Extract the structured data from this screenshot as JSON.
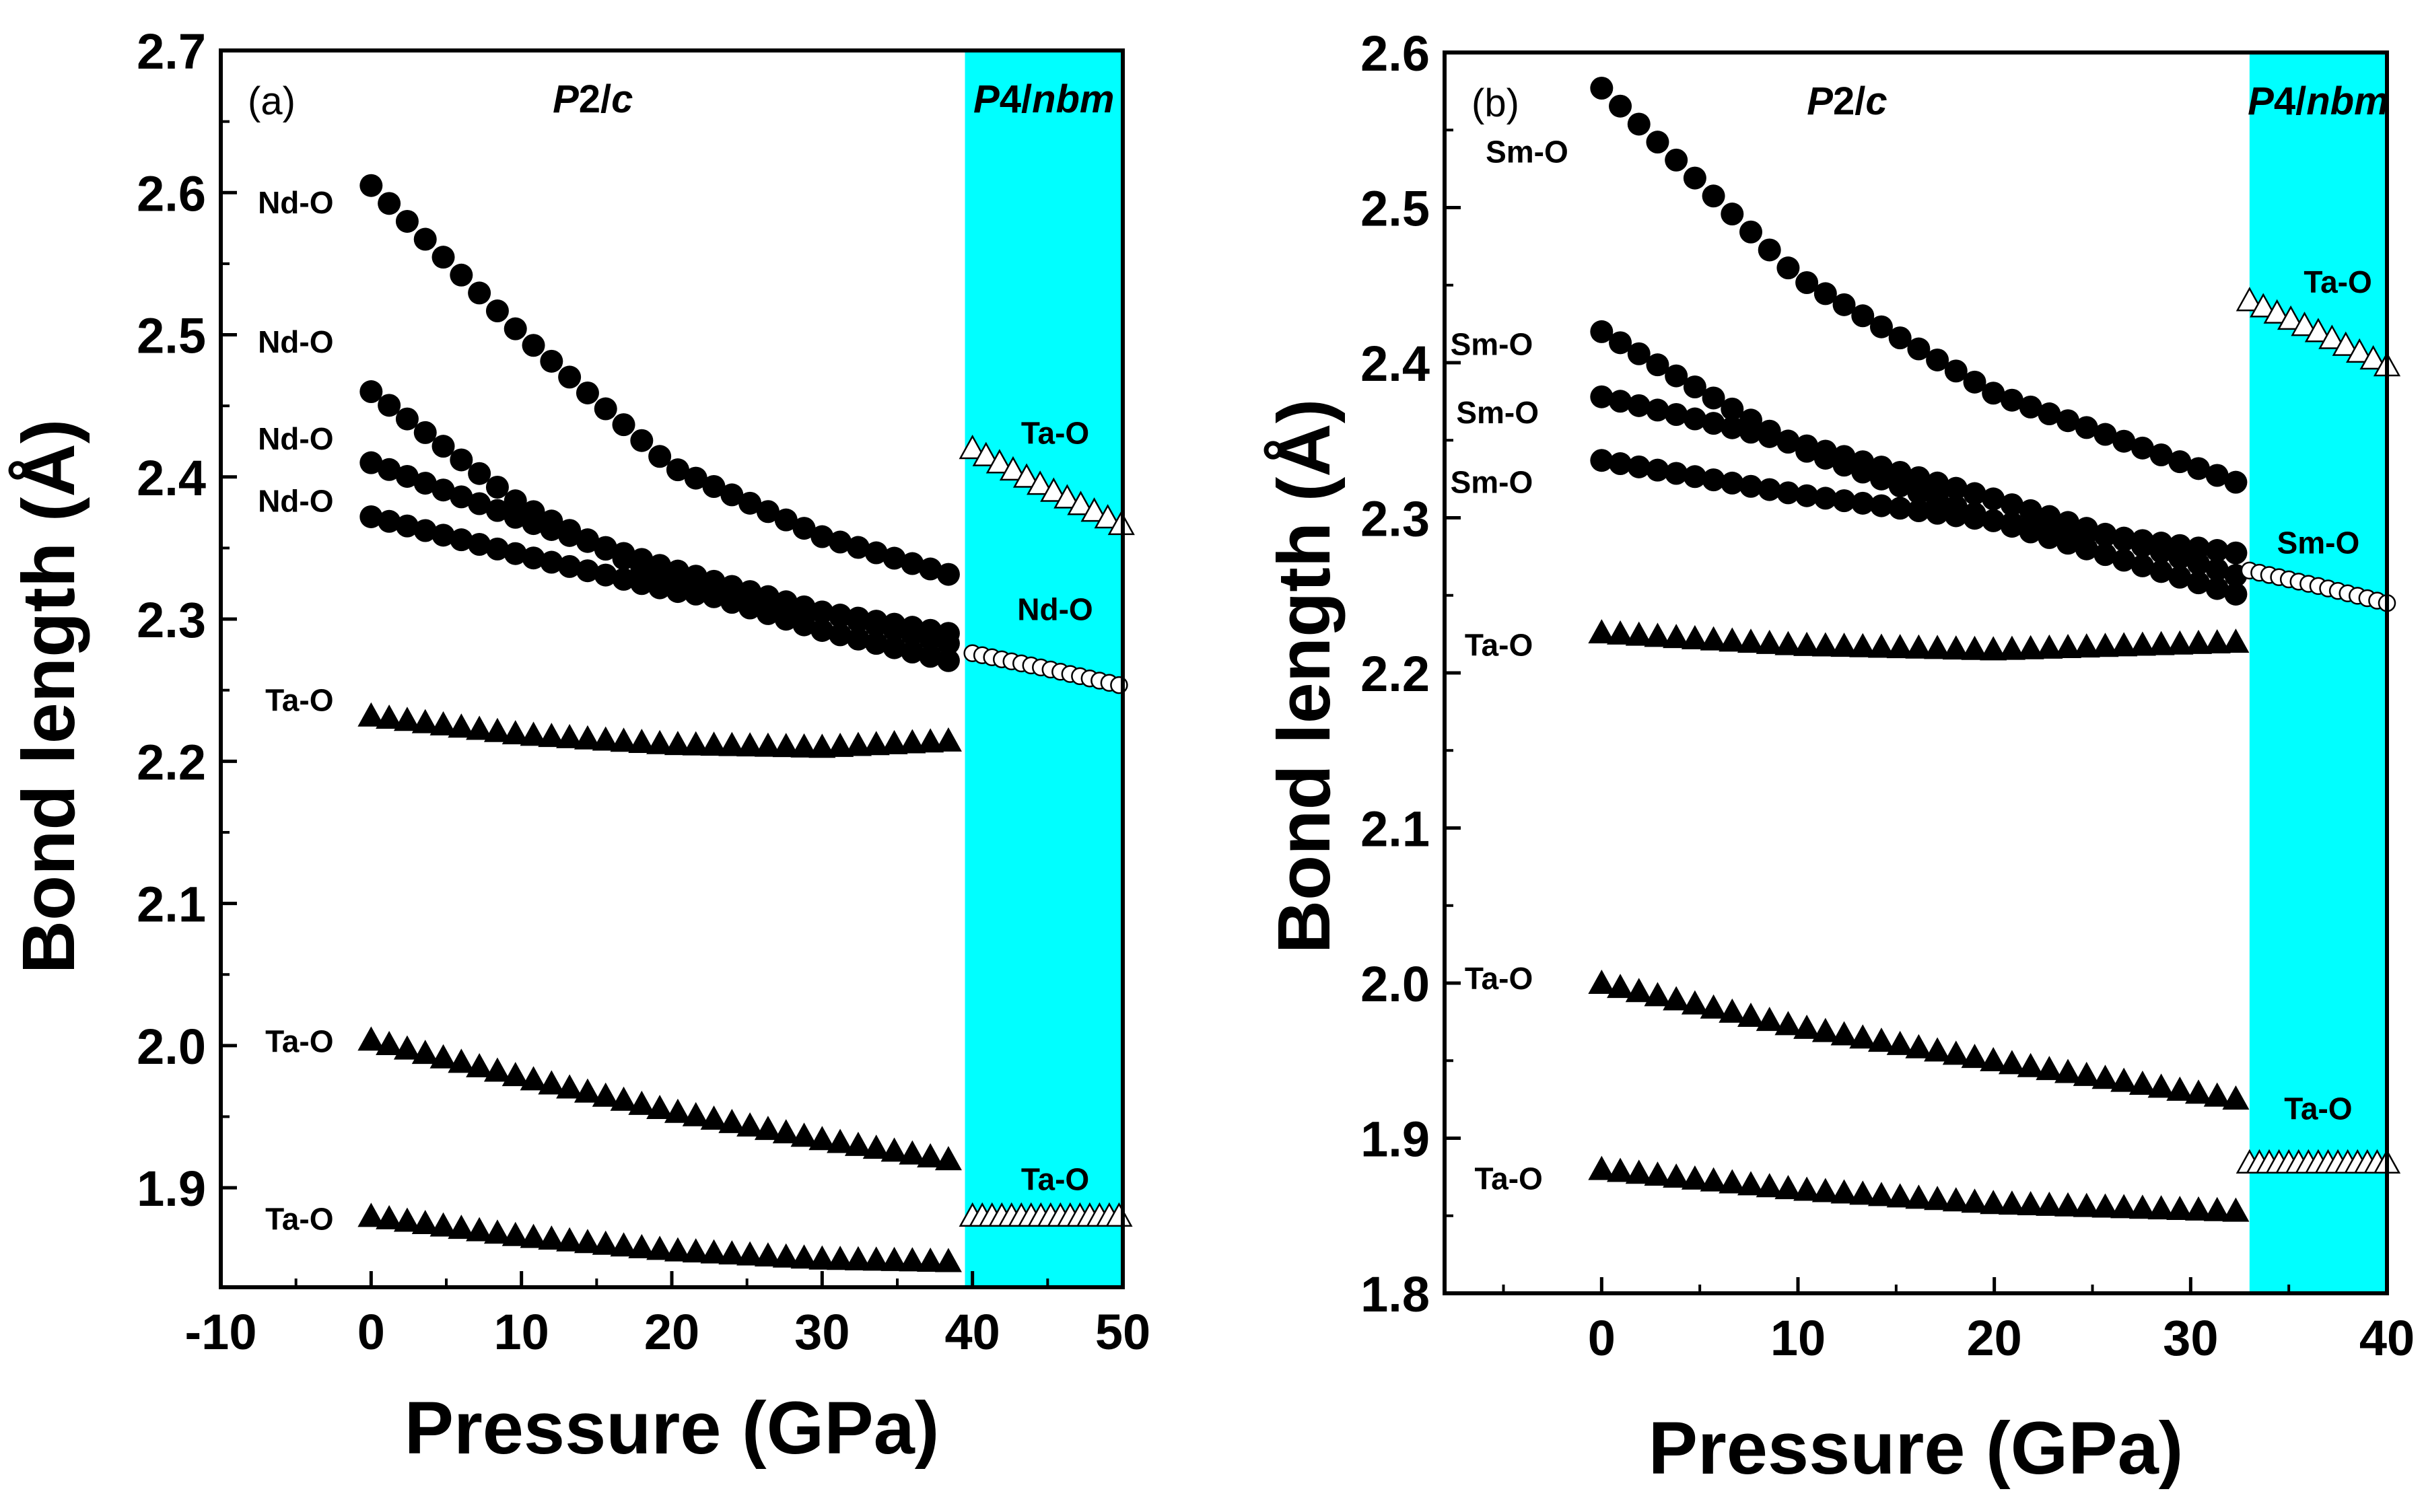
{
  "colors": {
    "background": "#ffffff",
    "region": "#00ffff",
    "marker_fill": "#000000",
    "marker_open_fill": "#ffffff",
    "axis": "#000000"
  },
  "chart_data": [
    {
      "type": "scatter",
      "panel_label": "(a)",
      "xlabel": "Pressure (GPa)",
      "ylabel": "Bond length (Å)",
      "xlim": [
        -10,
        50
      ],
      "ylim": [
        1.83,
        2.7
      ],
      "xticks": [
        -10,
        0,
        10,
        20,
        30,
        40,
        50
      ],
      "xtick_labels": [
        "-10",
        "0",
        "10",
        "20",
        "30",
        "40",
        "50"
      ],
      "yticks": [
        1.9,
        2.0,
        2.1,
        2.2,
        2.3,
        2.4,
        2.5,
        2.6,
        2.7
      ],
      "ytick_labels": [
        "1.9",
        "2.0",
        "2.1",
        "2.2",
        "2.3",
        "2.4",
        "2.5",
        "2.6",
        "2.7"
      ],
      "phase_regions": [
        {
          "label": "P2/c",
          "label_parts": [
            {
              "text": "P",
              "italic": true
            },
            {
              "text": "2/",
              "italic": false
            },
            {
              "text": "c",
              "italic": true
            }
          ],
          "x_range": [
            -10,
            39.5
          ],
          "shaded": false
        },
        {
          "label": "P4/nbm",
          "label_parts": [
            {
              "text": "P",
              "italic": true
            },
            {
              "text": "4/",
              "italic": false
            },
            {
              "text": "nbm",
              "italic": true
            }
          ],
          "x_range": [
            39.5,
            50
          ],
          "shaded": true
        }
      ],
      "series": [
        {
          "name": "Nd-O",
          "marker": "circle",
          "filled": true,
          "p_range": [
            0,
            39.5
          ],
          "step": 1.2,
          "points": [
            [
              0,
              2.605
            ],
            [
              10,
              2.5
            ],
            [
              20,
              2.407
            ],
            [
              30,
              2.358
            ],
            [
              39.5,
              2.328
            ]
          ],
          "label_at": [
            -2.5,
            2.593
          ]
        },
        {
          "name": "Nd-O",
          "marker": "circle",
          "filled": true,
          "p_range": [
            0,
            39.5
          ],
          "step": 1.2,
          "points": [
            [
              0,
              2.46
            ],
            [
              10,
              2.38
            ],
            [
              20,
              2.325
            ],
            [
              30,
              2.292
            ],
            [
              39.5,
              2.268
            ]
          ],
          "label_at": [
            -2.5,
            2.495
          ]
        },
        {
          "name": "Nd-O",
          "marker": "circle",
          "filled": true,
          "p_range": [
            0,
            39.5
          ],
          "step": 1.2,
          "points": [
            [
              0,
              2.41
            ],
            [
              10,
              2.37
            ],
            [
              20,
              2.335
            ],
            [
              30,
              2.305
            ],
            [
              39.5,
              2.28
            ]
          ],
          "label_at": [
            -2.5,
            2.427
          ]
        },
        {
          "name": "Nd-O",
          "marker": "circle",
          "filled": true,
          "p_range": [
            0,
            39.5
          ],
          "step": 1.2,
          "points": [
            [
              0,
              2.372
            ],
            [
              10,
              2.345
            ],
            [
              20,
              2.32
            ],
            [
              30,
              2.305
            ],
            [
              39.5,
              2.288
            ]
          ],
          "label_at": [
            -2.5,
            2.383
          ]
        },
        {
          "name": "Ta-O",
          "marker": "triangle",
          "filled": true,
          "p_range": [
            0,
            39.5
          ],
          "step": 1.2,
          "points": [
            [
              0,
              2.232
            ],
            [
              10,
              2.219
            ],
            [
              20,
              2.212
            ],
            [
              30,
              2.21
            ],
            [
              39.5,
              2.215
            ]
          ],
          "label_at": [
            -2.5,
            2.243
          ]
        },
        {
          "name": "Ta-O",
          "marker": "triangle",
          "filled": true,
          "p_range": [
            0,
            39.5
          ],
          "step": 1.2,
          "points": [
            [
              0,
              2.004
            ],
            [
              10,
              1.978
            ],
            [
              20,
              1.954
            ],
            [
              30,
              1.934
            ],
            [
              39.5,
              1.918
            ]
          ],
          "label_at": [
            -2.5,
            2.003
          ]
        },
        {
          "name": "Ta-O",
          "marker": "triangle",
          "filled": true,
          "p_range": [
            0,
            39.5
          ],
          "step": 1.2,
          "points": [
            [
              0,
              1.88
            ],
            [
              10,
              1.866
            ],
            [
              20,
              1.856
            ],
            [
              30,
              1.85
            ],
            [
              39.5,
              1.848
            ]
          ],
          "label_at": [
            -2.5,
            1.878
          ]
        },
        {
          "name": "Ta-O",
          "marker": "triangle",
          "filled": false,
          "p_range": [
            40,
            50
          ],
          "step": 0.9,
          "points": [
            [
              40,
              2.42
            ],
            [
              45,
              2.392
            ],
            [
              50,
              2.366
            ]
          ],
          "label_at": [
            45.5,
            2.431
          ]
        },
        {
          "name": "Nd-O",
          "marker": "circle",
          "filled": false,
          "p_range": [
            40,
            50
          ],
          "step": 0.65,
          "points": [
            [
              40,
              2.276
            ],
            [
              45,
              2.265
            ],
            [
              50,
              2.253
            ]
          ],
          "label_at": [
            45.5,
            2.307
          ]
        },
        {
          "name": "Ta-O",
          "marker": "triangle",
          "filled": false,
          "p_range": [
            40,
            50
          ],
          "step": 0.65,
          "points": [
            [
              40,
              1.88
            ],
            [
              45,
              1.88
            ],
            [
              50,
              1.88
            ]
          ],
          "label_at": [
            45.5,
            1.906
          ]
        }
      ]
    },
    {
      "type": "scatter",
      "panel_label": "(b)",
      "xlabel": "Pressure (GPa)",
      "ylabel": "Bond length (Å)",
      "xlim": [
        -8,
        40
      ],
      "ylim": [
        1.8,
        2.6
      ],
      "xticks": [
        0,
        10,
        20,
        30,
        40
      ],
      "xtick_labels": [
        "0",
        "10",
        "20",
        "30",
        "40"
      ],
      "yticks": [
        1.8,
        1.9,
        2.0,
        2.1,
        2.2,
        2.3,
        2.4,
        2.5,
        2.6
      ],
      "ytick_labels": [
        "1.8",
        "1.9",
        "2.0",
        "2.1",
        "2.2",
        "2.3",
        "2.4",
        "2.5",
        "2.6"
      ],
      "phase_regions": [
        {
          "label": "P2/c",
          "label_parts": [
            {
              "text": "P",
              "italic": true
            },
            {
              "text": "2/",
              "italic": false
            },
            {
              "text": "c",
              "italic": true
            }
          ],
          "x_range": [
            -8,
            33
          ],
          "shaded": false
        },
        {
          "label": "P4/nbm",
          "label_parts": [
            {
              "text": "P",
              "italic": true
            },
            {
              "text": "4/",
              "italic": false
            },
            {
              "text": "nbm",
              "italic": true
            }
          ],
          "x_range": [
            33,
            40
          ],
          "shaded": true
        }
      ],
      "series": [
        {
          "name": "Sm-O",
          "marker": "circle",
          "filled": true,
          "p_range": [
            0,
            32.5
          ],
          "step": 0.95,
          "points": [
            [
              0,
              2.577
            ],
            [
              10,
              2.455
            ],
            [
              20,
              2.38
            ],
            [
              32.5,
              2.322
            ]
          ],
          "label_at": [
            -1.7,
            2.536
          ]
        },
        {
          "name": "Sm-O",
          "marker": "circle",
          "filled": true,
          "p_range": [
            0,
            32.5
          ],
          "step": 0.95,
          "points": [
            [
              0,
              2.42
            ],
            [
              10,
              2.345
            ],
            [
              20,
              2.298
            ],
            [
              32.5,
              2.25
            ]
          ],
          "label_at": [
            -3.5,
            2.412
          ]
        },
        {
          "name": "Sm-O",
          "marker": "circle",
          "filled": true,
          "p_range": [
            0,
            32.5
          ],
          "step": 0.95,
          "points": [
            [
              0,
              2.378
            ],
            [
              10,
              2.348
            ],
            [
              20,
              2.312
            ],
            [
              32.5,
              2.262
            ]
          ],
          "label_at": [
            -3.2,
            2.368
          ]
        },
        {
          "name": "Sm-O",
          "marker": "circle",
          "filled": true,
          "p_range": [
            0,
            32.5
          ],
          "step": 0.95,
          "points": [
            [
              0,
              2.337
            ],
            [
              10,
              2.315
            ],
            [
              20,
              2.298
            ],
            [
              32.5,
              2.277
            ]
          ],
          "label_at": [
            -3.5,
            2.323
          ]
        },
        {
          "name": "Ta-O",
          "marker": "triangle",
          "filled": true,
          "p_range": [
            0,
            32.5
          ],
          "step": 0.95,
          "points": [
            [
              0,
              2.226
            ],
            [
              10,
              2.218
            ],
            [
              20,
              2.215
            ],
            [
              32.5,
              2.22
            ]
          ],
          "label_at": [
            -3.5,
            2.218
          ]
        },
        {
          "name": "Ta-O",
          "marker": "triangle",
          "filled": true,
          "p_range": [
            0,
            32.5
          ],
          "step": 0.95,
          "points": [
            [
              0,
              2.0
            ],
            [
              10,
              1.972
            ],
            [
              20,
              1.95
            ],
            [
              32.5,
              1.925
            ]
          ],
          "label_at": [
            -3.5,
            2.003
          ]
        },
        {
          "name": "Ta-O",
          "marker": "triangle",
          "filled": true,
          "p_range": [
            0,
            32.5
          ],
          "step": 0.95,
          "points": [
            [
              0,
              1.88
            ],
            [
              10,
              1.867
            ],
            [
              20,
              1.858
            ],
            [
              32.5,
              1.853
            ]
          ],
          "label_at": [
            -3.0,
            1.874
          ]
        },
        {
          "name": "Ta-O",
          "marker": "triangle",
          "filled": false,
          "p_range": [
            33,
            40
          ],
          "step": 0.7,
          "points": [
            [
              33,
              2.44
            ],
            [
              36.5,
              2.42
            ],
            [
              40,
              2.398
            ]
          ],
          "label_at": [
            37.5,
            2.452
          ]
        },
        {
          "name": "Sm-O",
          "marker": "circle",
          "filled": false,
          "p_range": [
            33,
            40
          ],
          "step": 0.5,
          "points": [
            [
              33,
              2.266
            ],
            [
              36.5,
              2.256
            ],
            [
              40,
              2.245
            ]
          ],
          "label_at": [
            36.5,
            2.284
          ]
        },
        {
          "name": "Ta-O",
          "marker": "triangle",
          "filled": false,
          "p_range": [
            33,
            40
          ],
          "step": 0.5,
          "points": [
            [
              33,
              1.884
            ],
            [
              36.5,
              1.884
            ],
            [
              40,
              1.884
            ]
          ],
          "label_at": [
            36.5,
            1.919
          ]
        }
      ]
    }
  ]
}
